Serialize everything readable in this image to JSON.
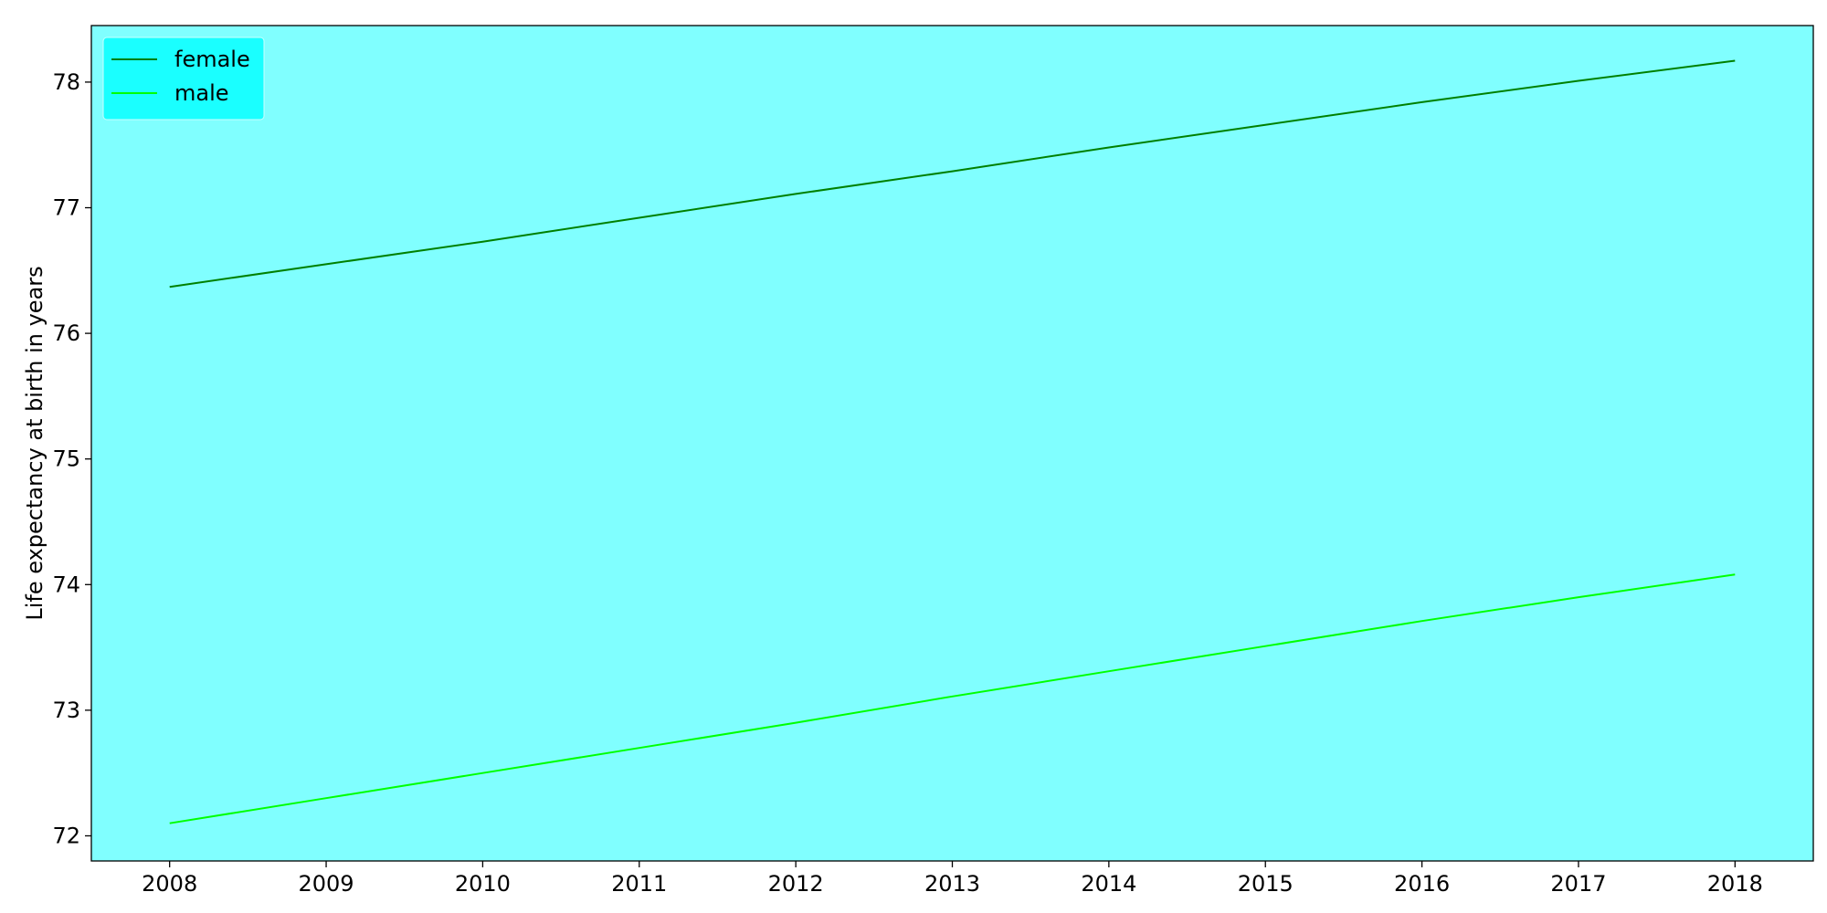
{
  "chart_data": {
    "type": "line",
    "title": "",
    "xlabel": "",
    "ylabel": "Life expectancy at birth in years",
    "x": [
      2008,
      2009,
      2010,
      2011,
      2012,
      2013,
      2014,
      2015,
      2016,
      2017,
      2018
    ],
    "series": [
      {
        "name": "female",
        "color": "#008000",
        "values": [
          76.37,
          76.55,
          76.73,
          76.92,
          77.11,
          77.29,
          77.48,
          77.66,
          77.84,
          78.01,
          78.17
        ]
      },
      {
        "name": "male",
        "color": "#00ff00",
        "values": [
          72.1,
          72.3,
          72.5,
          72.7,
          72.9,
          73.11,
          73.31,
          73.51,
          73.71,
          73.9,
          74.08
        ]
      }
    ],
    "xlim": [
      2007.5,
      2018.5
    ],
    "ylim": [
      71.8,
      78.45
    ],
    "xticks": [
      "2008",
      "2009",
      "2010",
      "2011",
      "2012",
      "2013",
      "2014",
      "2015",
      "2016",
      "2017",
      "2018"
    ],
    "yticks": [
      "72",
      "73",
      "74",
      "75",
      "76",
      "77",
      "78"
    ],
    "grid": false,
    "legend_position": "top-left",
    "background_color": "#80ffff",
    "legend_background": "#1affff"
  }
}
